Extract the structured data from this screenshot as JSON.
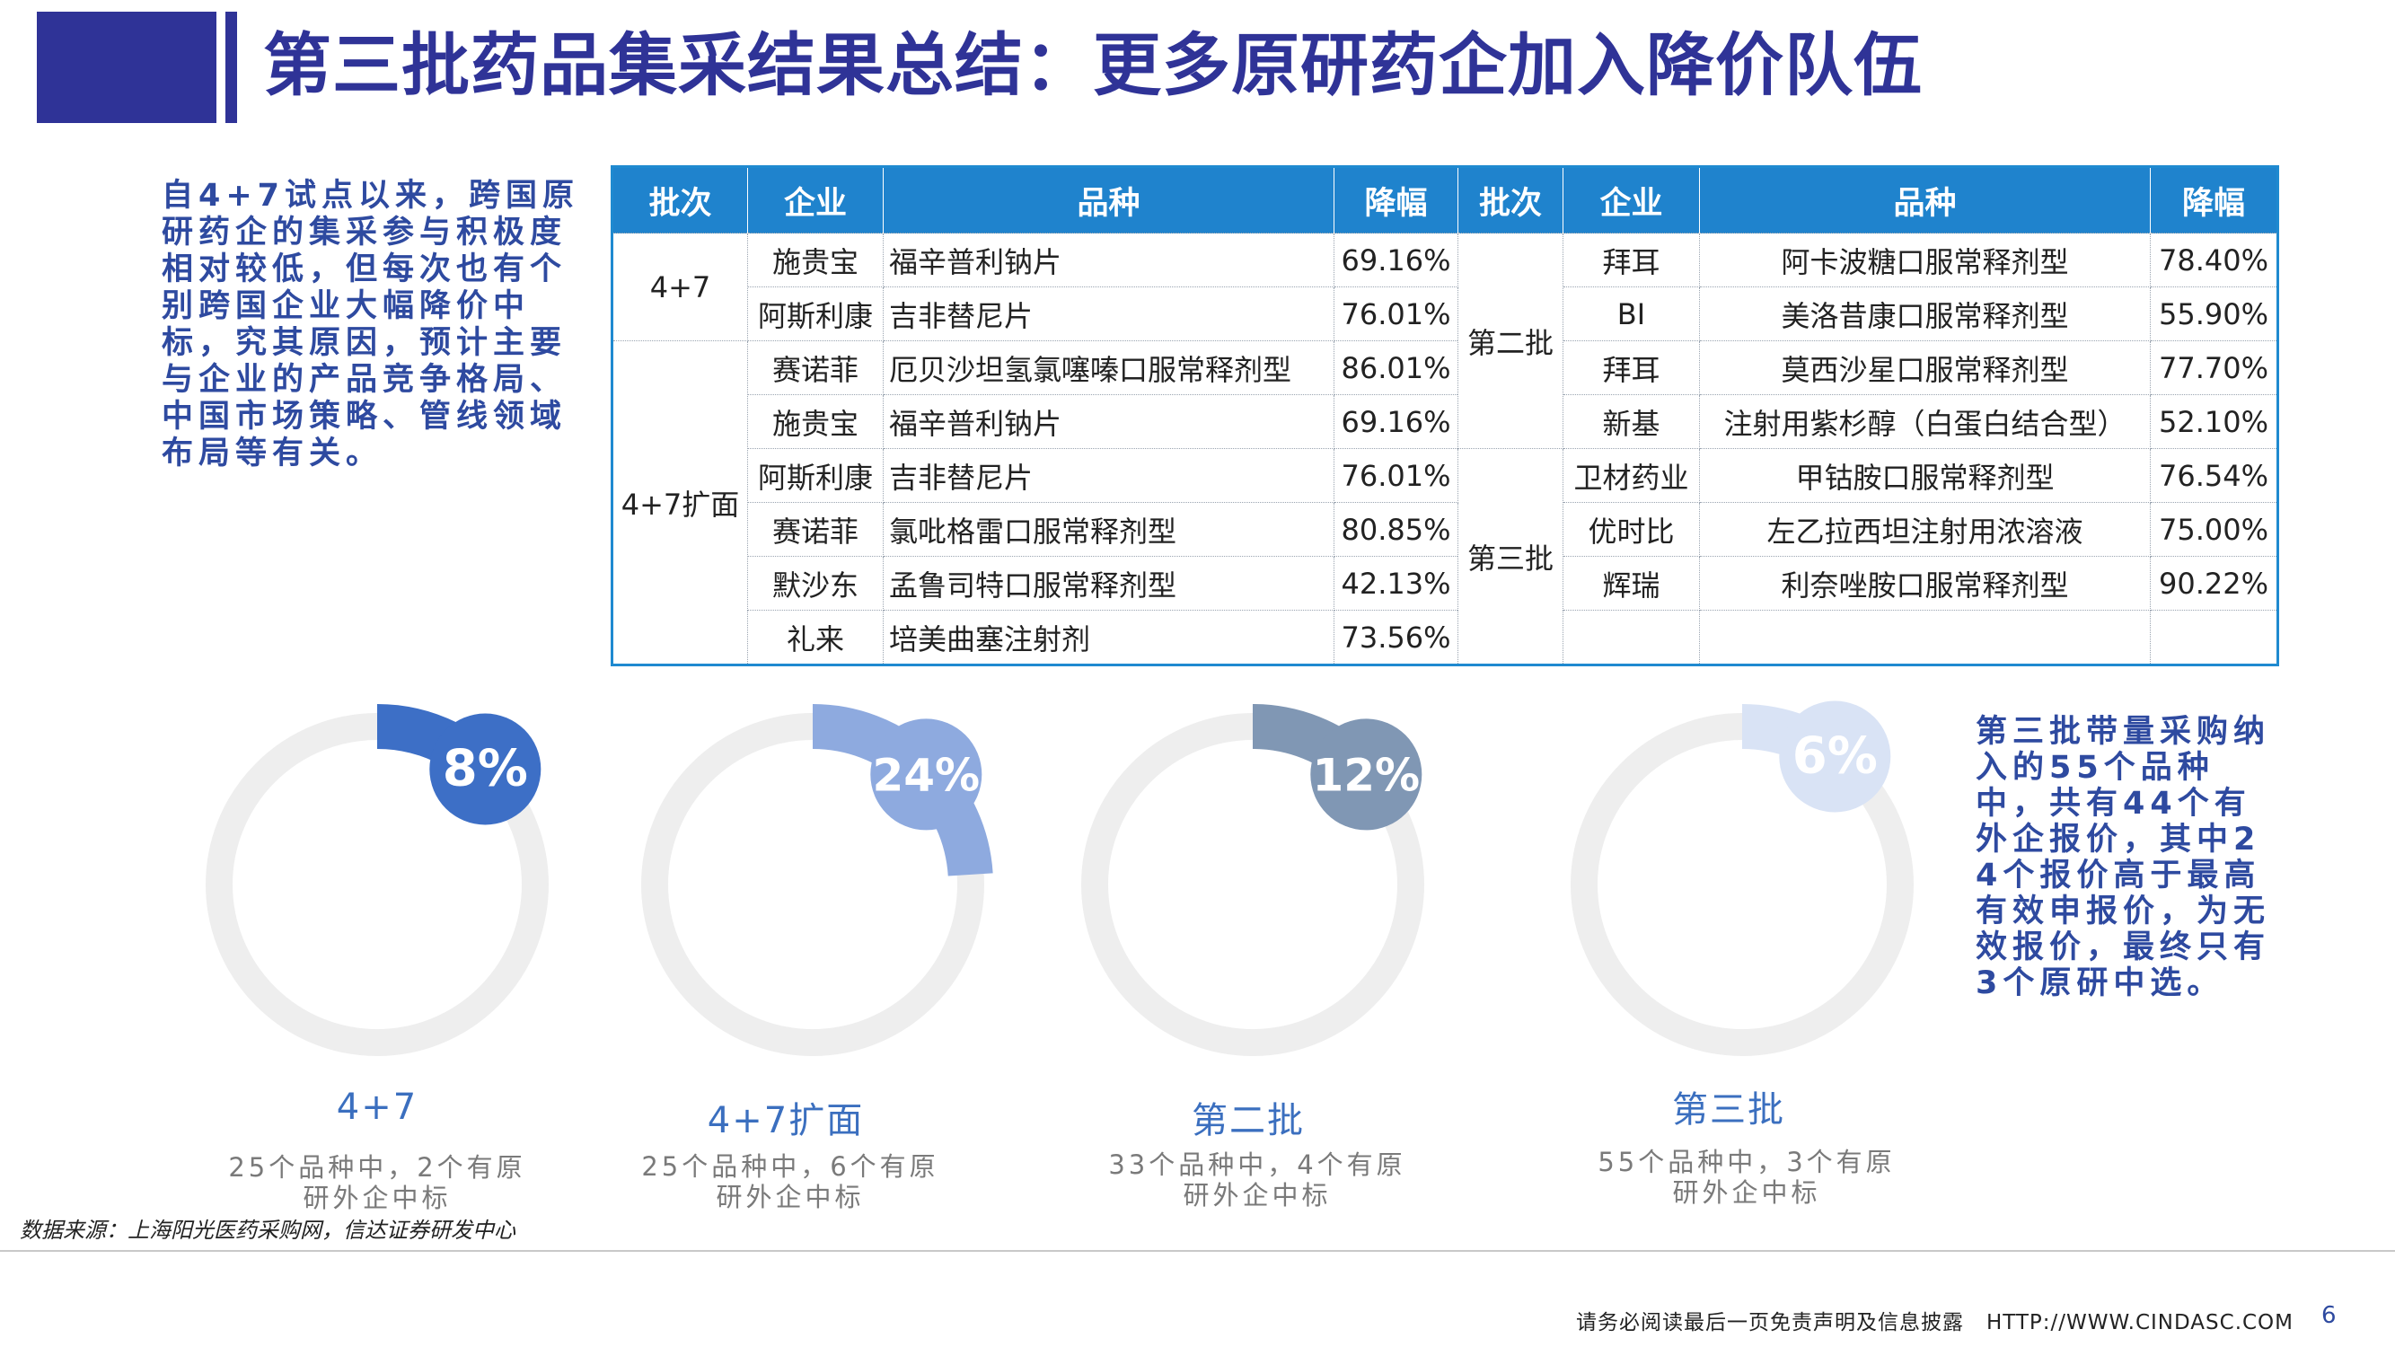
{
  "header": {
    "title": "第三批药品集采结果总结：更多原研药企加入降价队伍"
  },
  "left_note": "自4+7试点以来，跨国原研药企的集采参与积极度相对较低，但每次也有个别跨国企业大幅降价中标，究其原因，预计主要与企业的产品竞争格局、中国市场策略、管线领域布局等有关。",
  "right_note": "第三批带量采购纳入的55个品种中，共有44个有外企报价，其中24个报价高于最高有效申报价，为无效报价，最终只有3个原研中选。",
  "table": {
    "headers": [
      "批次",
      "企业",
      "品种",
      "降幅",
      "批次",
      "企业",
      "品种",
      "降幅"
    ],
    "left_batches": [
      "4+7",
      "4+7扩面"
    ],
    "right_batches": [
      "第二批",
      "第三批"
    ],
    "rows": [
      {
        "lc": "施贵宝",
        "lp": "福辛普利钠片",
        "lr": "69.16%",
        "rc": "拜耳",
        "rp": "阿卡波糖口服常释剂型",
        "rr": "78.40%"
      },
      {
        "lc": "阿斯利康",
        "lp": "吉非替尼片",
        "lr": "76.01%",
        "rc": "BI",
        "rp": "美洛昔康口服常释剂型",
        "rr": "55.90%"
      },
      {
        "lc": "赛诺菲",
        "lp": "厄贝沙坦氢氯噻嗪口服常释剂型",
        "lr": "86.01%",
        "rc": "拜耳",
        "rp": "莫西沙星口服常释剂型",
        "rr": "77.70%"
      },
      {
        "lc": "施贵宝",
        "lp": "福辛普利钠片",
        "lr": "69.16%",
        "rc": "新基",
        "rp": "注射用紫杉醇（白蛋白结合型）",
        "rr": "52.10%"
      },
      {
        "lc": "阿斯利康",
        "lp": "吉非替尼片",
        "lr": "76.01%",
        "rc": "卫材药业",
        "rp": "甲钴胺口服常释剂型",
        "rr": "76.54%"
      },
      {
        "lc": "赛诺菲",
        "lp": "氯吡格雷口服常释剂型",
        "lr": "80.85%",
        "rc": "优时比",
        "rp": "左乙拉西坦注射用浓溶液",
        "rr": "75.00%"
      },
      {
        "lc": "默沙东",
        "lp": "孟鲁司特口服常释剂型",
        "lr": "42.13%",
        "rc": "辉瑞",
        "rp": "利奈唑胺口服常释剂型",
        "rr": "90.22%"
      },
      {
        "lc": "礼来",
        "lp": "培美曲塞注射剂",
        "lr": "73.56%",
        "rc": "",
        "rp": "",
        "rr": ""
      }
    ]
  },
  "donuts": [
    {
      "pct_label": "8%",
      "fraction": 0.08,
      "color": "#3d6fc6",
      "text_color": "#ffffff",
      "label": "4+7",
      "sub": "25个品种中，2个有原研外企中标"
    },
    {
      "pct_label": "24%",
      "fraction": 0.24,
      "color": "#8eaadf",
      "text_color": "#ffffff",
      "label": "4+7扩面",
      "sub": "25个品种中，6个有原研外企中标"
    },
    {
      "pct_label": "12%",
      "fraction": 0.12,
      "color": "#8097b4",
      "text_color": "#ffffff",
      "label": "第二批",
      "sub": "33个品种中，4个有原研外企中标"
    },
    {
      "pct_label": "6%",
      "fraction": 0.06,
      "color": "#d9e3f5",
      "text_color": "#ffffff",
      "label": "第三批",
      "sub": "55个品种中，3个有原研外企中标"
    }
  ],
  "source": "数据来源：上海阳光医药采购网，信达证券研发中心",
  "footer": {
    "disclaimer": "请务必阅读最后一页免责声明及信息披露",
    "url": "HTTP://WWW.CINDASC.COM",
    "page": "6"
  }
}
